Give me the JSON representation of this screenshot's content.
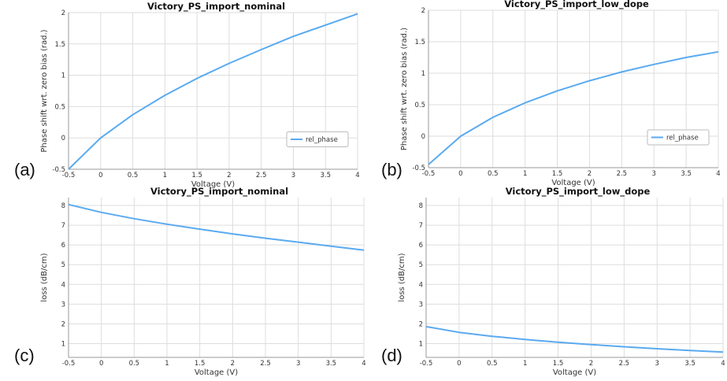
{
  "panel_letters": [
    "(a)",
    "(b)",
    "(c)",
    "(d)"
  ],
  "chart_data": [
    {
      "type": "line",
      "title": "Victory_PS_import_nominal",
      "xlabel": "Voltage (V)",
      "ylabel": "Phase shift wrt. zero bias (rad.)",
      "xlim": [
        -0.5,
        4
      ],
      "ylim": [
        -0.5,
        2
      ],
      "xticks": [
        "-0.5",
        "0",
        "0.5",
        "1",
        "1.5",
        "2",
        "2.5",
        "3",
        "3.5",
        "4"
      ],
      "yticks": [
        "-0.5",
        "0",
        "0.5",
        "1",
        "1.5",
        "2"
      ],
      "grid": true,
      "legend": "right-middle",
      "color": "#5aaaf0",
      "series": [
        {
          "name": "rel_phase",
          "x": [
            -0.5,
            0,
            0.5,
            1,
            1.5,
            2,
            2.5,
            3,
            3.5,
            4
          ],
          "y": [
            -0.5,
            0,
            0.37,
            0.68,
            0.95,
            1.19,
            1.41,
            1.62,
            1.8,
            1.98
          ]
        }
      ]
    },
    {
      "type": "line",
      "title": "Victory_PS_import_low_dope",
      "xlabel": "Voltage (V)",
      "ylabel": "Phase shift wrt. zero bias (rad.)",
      "xlim": [
        -0.5,
        4
      ],
      "ylim": [
        -0.5,
        2
      ],
      "xticks": [
        "-0.5",
        "0",
        "0.5",
        "1",
        "1.5",
        "2",
        "2.5",
        "3",
        "3.5",
        "4"
      ],
      "yticks": [
        "-0.5",
        "0",
        "0.5",
        "1",
        "1.5",
        "2"
      ],
      "grid": true,
      "legend": "right-middle",
      "color": "#5aaaf0",
      "series": [
        {
          "name": "rel_phase",
          "x": [
            -0.5,
            0,
            0.5,
            1,
            1.5,
            2,
            2.5,
            3,
            3.5,
            4
          ],
          "y": [
            -0.45,
            0,
            0.3,
            0.53,
            0.72,
            0.88,
            1.02,
            1.14,
            1.25,
            1.34
          ]
        }
      ]
    },
    {
      "type": "line",
      "title": "Victory_PS_import_nominal",
      "xlabel": "Voltage (V)",
      "ylabel": "loss (dB/cm)",
      "xlim": [
        -0.5,
        4
      ],
      "ylim": [
        0.3,
        8.4
      ],
      "xticks": [
        "-0.5",
        "0",
        "0.5",
        "1",
        "1.5",
        "2",
        "2.5",
        "3",
        "3.5",
        "4"
      ],
      "yticks": [
        "1",
        "2",
        "3",
        "4",
        "5",
        "6",
        "7",
        "8"
      ],
      "grid": true,
      "color": "#5aaaf0",
      "series": [
        {
          "x": [
            -0.5,
            0,
            0.5,
            1,
            1.5,
            2,
            2.5,
            3,
            3.5,
            4
          ],
          "y": [
            8.05,
            7.65,
            7.33,
            7.05,
            6.8,
            6.56,
            6.34,
            6.14,
            5.94,
            5.74
          ]
        }
      ]
    },
    {
      "type": "line",
      "title": "Victory_PS_import_low_dope",
      "xlabel": "Voltage (V)",
      "ylabel": "loss (dB/cm)",
      "xlim": [
        -0.5,
        4
      ],
      "ylim": [
        0.3,
        8.4
      ],
      "xticks": [
        "-0.5",
        "0",
        "0.5",
        "1",
        "1.5",
        "2",
        "2.5",
        "3",
        "3.5",
        "4"
      ],
      "yticks": [
        "1",
        "2",
        "3",
        "4",
        "5",
        "6",
        "7",
        "8"
      ],
      "grid": true,
      "color": "#5aaaf0",
      "series": [
        {
          "x": [
            -0.5,
            0,
            0.5,
            1,
            1.5,
            2,
            2.5,
            3,
            3.5,
            4
          ],
          "y": [
            1.86,
            1.57,
            1.37,
            1.21,
            1.07,
            0.95,
            0.84,
            0.74,
            0.65,
            0.57
          ]
        }
      ]
    }
  ]
}
